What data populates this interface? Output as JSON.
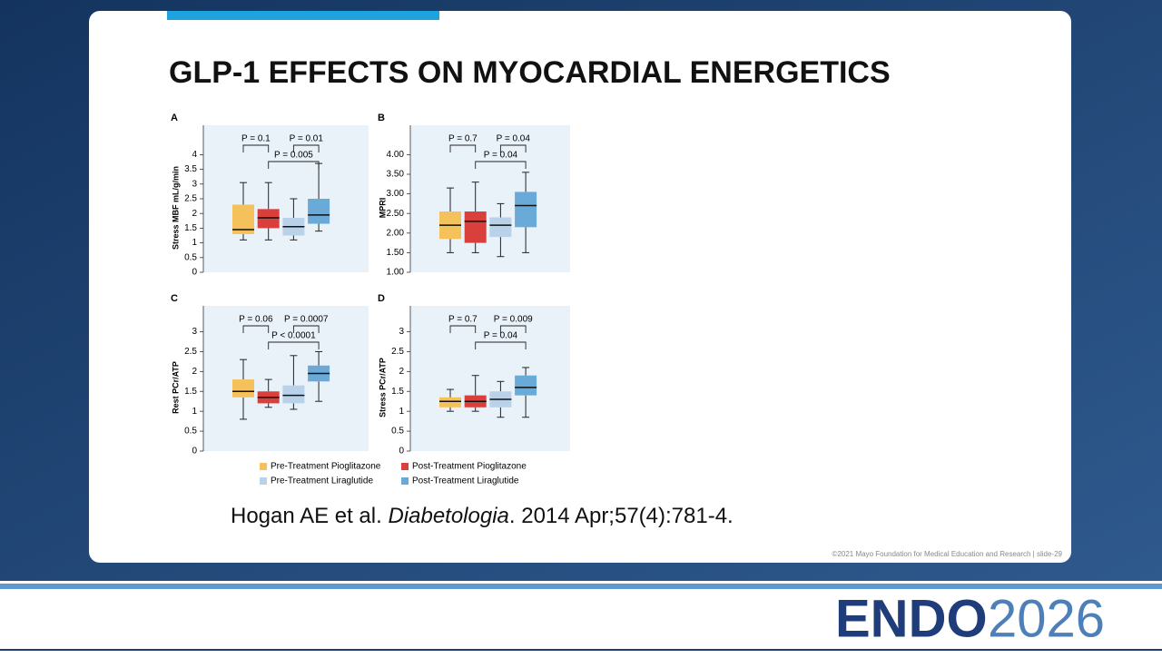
{
  "title": "GLP-1 EFFECTS ON MYOCARDIAL ENERGETICS",
  "legend": [
    {
      "name": "Pre-Treatment Pioglitazone",
      "color": "#f4c15a"
    },
    {
      "name": "Post-Treatment Pioglitazone",
      "color": "#d9403b"
    },
    {
      "name": "Pre-Treatment Liraglutide",
      "color": "#b9d2ea"
    },
    {
      "name": "Post-Treatment Liraglutide",
      "color": "#6aaad9"
    }
  ],
  "chart_data": [
    {
      "type": "box",
      "panel": "A",
      "y_label": "Stress MBF mL/g/min",
      "ylim": [
        0,
        5
      ],
      "yticks": [
        0,
        0.5,
        1,
        1.5,
        2,
        2.5,
        3,
        3.5,
        4
      ],
      "annotations": [
        "P = 0.1",
        "P = 0.01",
        "P = 0.005"
      ],
      "boxes": [
        {
          "whisker_low": 1.1,
          "q1": 1.3,
          "median": 1.45,
          "q3": 2.3,
          "whisker_high": 3.05
        },
        {
          "whisker_low": 1.1,
          "q1": 1.5,
          "median": 1.85,
          "q3": 2.15,
          "whisker_high": 3.05
        },
        {
          "whisker_low": 1.1,
          "q1": 1.25,
          "median": 1.55,
          "q3": 1.85,
          "whisker_high": 2.5
        },
        {
          "whisker_low": 1.4,
          "q1": 1.65,
          "median": 1.95,
          "q3": 2.5,
          "whisker_high": 3.7
        }
      ]
    },
    {
      "type": "box",
      "panel": "B",
      "y_label": "MPRI",
      "ylim": [
        1,
        4.75
      ],
      "yticks": [
        {
          "value": 1,
          "label": "1.00"
        },
        {
          "value": 1.5,
          "label": "1.50"
        },
        {
          "value": 2,
          "label": "2.00"
        },
        {
          "value": 2.5,
          "label": "2.50"
        },
        {
          "value": 3,
          "label": "3.00"
        },
        {
          "value": 3.5,
          "label": "3.50"
        },
        {
          "value": 4,
          "label": "4.00"
        }
      ],
      "annotations": [
        "P = 0.7",
        "P = 0.04",
        "P = 0.04"
      ],
      "boxes": [
        {
          "whisker_low": 1.5,
          "q1": 1.85,
          "median": 2.2,
          "q3": 2.55,
          "whisker_high": 3.15
        },
        {
          "whisker_low": 1.5,
          "q1": 1.75,
          "median": 2.3,
          "q3": 2.55,
          "whisker_high": 3.3
        },
        {
          "whisker_low": 1.4,
          "q1": 1.9,
          "median": 2.2,
          "q3": 2.4,
          "whisker_high": 2.75
        },
        {
          "whisker_low": 1.5,
          "q1": 2.15,
          "median": 2.7,
          "q3": 3.05,
          "whisker_high": 3.55
        }
      ]
    },
    {
      "type": "box",
      "panel": "C",
      "y_label": "Rest PCr/ATP",
      "ylim": [
        0,
        3.65
      ],
      "yticks": [
        0,
        0.5,
        1,
        1.5,
        2,
        2.5,
        3
      ],
      "annotations": [
        "P = 0.06",
        "P = 0.0007",
        "P < 0.0001"
      ],
      "boxes": [
        {
          "whisker_low": 0.8,
          "q1": 1.35,
          "median": 1.5,
          "q3": 1.8,
          "whisker_high": 2.3
        },
        {
          "whisker_low": 1.1,
          "q1": 1.2,
          "median": 1.35,
          "q3": 1.5,
          "whisker_high": 1.8
        },
        {
          "whisker_low": 1.05,
          "q1": 1.2,
          "median": 1.4,
          "q3": 1.65,
          "whisker_high": 2.4
        },
        {
          "whisker_low": 1.25,
          "q1": 1.75,
          "median": 1.95,
          "q3": 2.15,
          "whisker_high": 2.5
        }
      ]
    },
    {
      "type": "box",
      "panel": "D",
      "y_label": "Stress PCr/ATP",
      "ylim": [
        0,
        3.65
      ],
      "yticks": [
        0,
        0.5,
        1,
        1.5,
        2,
        2.5,
        3
      ],
      "annotations": [
        "P = 0.7",
        "P = 0.009",
        "P = 0.04"
      ],
      "boxes": [
        {
          "whisker_low": 1.0,
          "q1": 1.1,
          "median": 1.25,
          "q3": 1.35,
          "whisker_high": 1.55
        },
        {
          "whisker_low": 1.0,
          "q1": 1.1,
          "median": 1.25,
          "q3": 1.4,
          "whisker_high": 1.9
        },
        {
          "whisker_low": 0.85,
          "q1": 1.1,
          "median": 1.3,
          "q3": 1.5,
          "whisker_high": 1.75
        },
        {
          "whisker_low": 0.85,
          "q1": 1.4,
          "median": 1.6,
          "q3": 1.9,
          "whisker_high": 2.1
        }
      ]
    }
  ],
  "citation": {
    "authors": "Hogan AE et al. ",
    "journal": "Diabetologia",
    "details": ". 2014 Apr;57(4):781-4."
  },
  "footer": "©2021 Mayo Foundation for Medical Education and Research  |  slide-29",
  "logo": {
    "brand": "ENDO",
    "year": "2026"
  }
}
